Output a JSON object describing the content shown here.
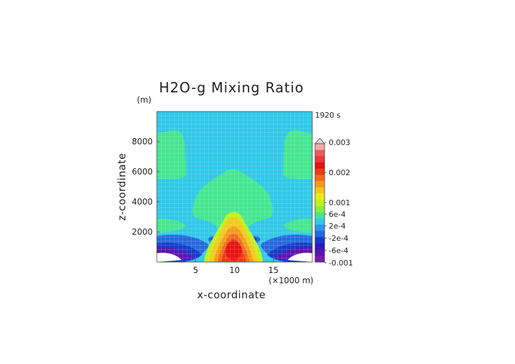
{
  "chart_data": {
    "type": "contour",
    "title": "H2O-g Mixing Ratio",
    "time_label": "1920 s",
    "xlabel": "x-coordinate",
    "x_unit": "(×1000 m)",
    "ylabel": "z-coordinate",
    "y_unit": "(m)",
    "xlim": [
      0,
      20
    ],
    "ylim": [
      0,
      10000
    ],
    "x_ticks": [
      5,
      10,
      15
    ],
    "y_ticks": [
      2000,
      4000,
      6000,
      8000
    ],
    "grid": true,
    "colorbar": {
      "levels": [
        -0.001,
        -0.0006,
        -0.0002,
        0.0002,
        0.0006,
        0.001,
        0.002,
        0.003
      ],
      "labels": [
        "0.003",
        "0.002",
        "0.001",
        "6e-4",
        "2e-4",
        "-2e-4",
        "-6e-4",
        "-0.001"
      ],
      "colors_top_to_bottom": [
        "#f4a9a9",
        "#e85c5c",
        "#e83a3a",
        "#e81010",
        "#ea3b1a",
        "#f4681c",
        "#f49a1c",
        "#f4c81c",
        "#e6ee1c",
        "#c0f01c",
        "#86ee40",
        "#44e690",
        "#30c8e8",
        "#2a98e8",
        "#2468e0",
        "#1838c8",
        "#3018c0",
        "#5a14b0",
        "#7a18b8"
      ]
    },
    "regions": [
      {
        "name": "background",
        "value": "-2e-4 to 2e-4",
        "color": "#30c8e8"
      },
      {
        "name": "upper plume",
        "value": "2e-4 to 6e-4",
        "color": "#44e690"
      },
      {
        "name": "core",
        "value": "above 0.001",
        "color": "#e81010"
      },
      {
        "name": "low-level trough",
        "value": "below -6e-4",
        "color": "#6a16b4"
      }
    ]
  }
}
